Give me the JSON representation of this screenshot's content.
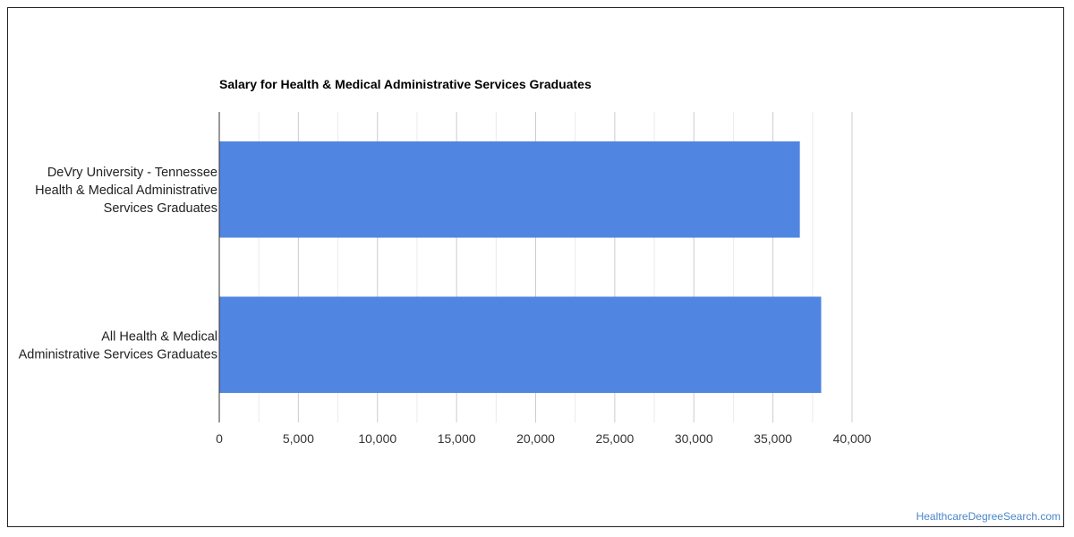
{
  "chart_data": {
    "type": "bar",
    "orientation": "horizontal",
    "title": "Salary for Health & Medical Administrative Services Graduates",
    "categories": [
      [
        "DeVry University - Tennessee",
        "Health & Medical Administrative",
        "Services Graduates"
      ],
      [
        "All Health & Medical",
        "Administrative Services Graduates"
      ]
    ],
    "values": [
      36700,
      38050
    ],
    "xlim": [
      0,
      40000
    ],
    "xticks": [
      0,
      5000,
      10000,
      15000,
      20000,
      25000,
      30000,
      35000,
      40000
    ],
    "xtick_labels": [
      "0",
      "5,000",
      "10,000",
      "15,000",
      "20,000",
      "25,000",
      "30,000",
      "35,000",
      "40,000"
    ],
    "grid": true,
    "bar_color": "#5185e2"
  },
  "credit": "HealthcareDegreeSearch.com"
}
